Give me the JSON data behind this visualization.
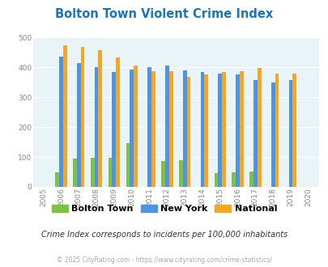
{
  "title": "Bolton Town Violent Crime Index",
  "years": [
    2005,
    2006,
    2007,
    2008,
    2009,
    2010,
    2011,
    2012,
    2013,
    2014,
    2015,
    2016,
    2017,
    2018,
    2019,
    2020
  ],
  "bolton_town": [
    0,
    50,
    95,
    98,
    98,
    145,
    0,
    87,
    90,
    0,
    47,
    50,
    52,
    0,
    0,
    0
  ],
  "new_york": [
    0,
    435,
    413,
    400,
    385,
    393,
    400,
    406,
    390,
    383,
    380,
    377,
    356,
    350,
    357,
    0
  ],
  "national": [
    0,
    474,
    468,
    456,
    432,
    405,
    388,
    387,
    368,
    376,
    383,
    386,
    397,
    380,
    379,
    0
  ],
  "bolton_color": "#7dc242",
  "ny_color": "#4d94e8",
  "national_color": "#f5a623",
  "bg_color": "#e8f4f8",
  "ylim": [
    0,
    500
  ],
  "yticks": [
    0,
    100,
    200,
    300,
    400,
    500
  ],
  "title_color": "#1a75bb",
  "subtitle": "Crime Index corresponds to incidents per 100,000 inhabitants",
  "footer": "© 2025 CityRating.com - https://www.cityrating.com/crime-statistics/",
  "bar_width": 0.22
}
